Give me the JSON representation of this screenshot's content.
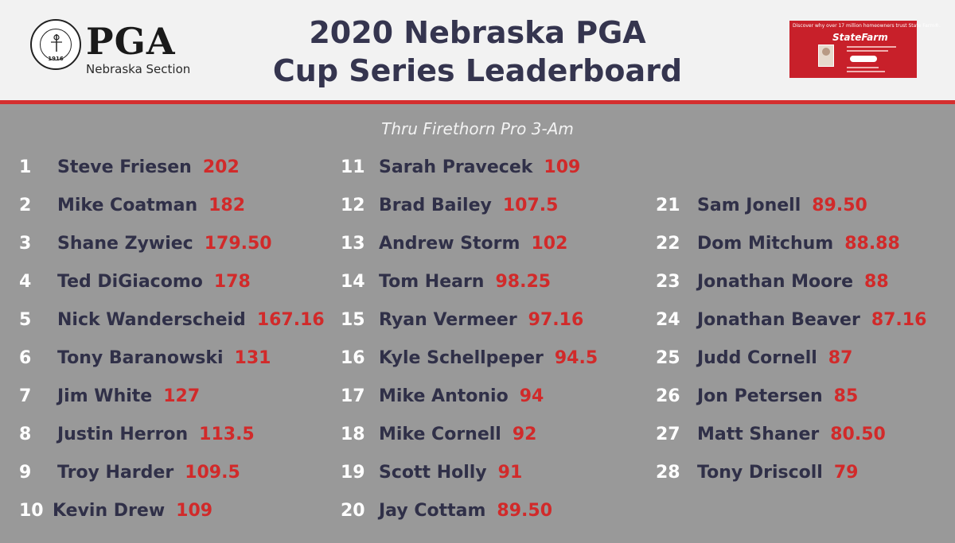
{
  "header": {
    "logo": {
      "wordmark": "PGA",
      "section": "Nebraska Section",
      "seal_year": "1916"
    },
    "title_line1": "2020 Nebraska PGA",
    "title_line2": "Cup Series Leaderboard",
    "ad": {
      "tagline": "Discover why over 17 million homeowners trust State Farm®.",
      "brand": "StateFarm",
      "button_icon": "play-triangle-icon"
    }
  },
  "colors": {
    "accent_red": "#d42e2e",
    "title_navy": "#35354f",
    "board_gray": "#999999"
  },
  "subtitle": "Thru Firethorn Pro 3-Am",
  "leaderboard": [
    {
      "rank": "1",
      "name": "Steve Friesen",
      "points": "202"
    },
    {
      "rank": "2",
      "name": "Mike Coatman",
      "points": "182"
    },
    {
      "rank": "3",
      "name": "Shane Zywiec",
      "points": "179.50"
    },
    {
      "rank": "4",
      "name": "Ted DiGiacomo",
      "points": "178"
    },
    {
      "rank": "5",
      "name": "Nick Wanderscheid",
      "points": "167.16"
    },
    {
      "rank": "6",
      "name": "Tony Baranowski",
      "points": "131"
    },
    {
      "rank": "7",
      "name": "Jim White",
      "points": "127"
    },
    {
      "rank": "8",
      "name": "Justin Herron",
      "points": "113.5"
    },
    {
      "rank": "9",
      "name": "Troy Harder",
      "points": "109.5"
    },
    {
      "rank": "10",
      "name": "Kevin Drew",
      "points": "109"
    },
    {
      "rank": "11",
      "name": "Sarah Pravecek",
      "points": "109"
    },
    {
      "rank": "12",
      "name": "Brad Bailey",
      "points": "107.5"
    },
    {
      "rank": "13",
      "name": "Andrew Storm",
      "points": "102"
    },
    {
      "rank": "14",
      "name": "Tom Hearn",
      "points": "98.25"
    },
    {
      "rank": "15",
      "name": "Ryan Vermeer",
      "points": "97.16"
    },
    {
      "rank": "16",
      "name": "Kyle Schellpeper",
      "points": "94.5"
    },
    {
      "rank": "17",
      "name": "Mike Antonio",
      "points": "94"
    },
    {
      "rank": "18",
      "name": "Mike Cornell",
      "points": "92"
    },
    {
      "rank": "19",
      "name": "Scott Holly",
      "points": "91"
    },
    {
      "rank": "20",
      "name": "Jay Cottam",
      "points": "89.50"
    },
    {
      "rank": "21",
      "name": "Sam Jonell",
      "points": "89.50"
    },
    {
      "rank": "22",
      "name": "Dom Mitchum",
      "points": "88.88"
    },
    {
      "rank": "23",
      "name": "Jonathan Moore",
      "points": "88"
    },
    {
      "rank": "24",
      "name": "Jonathan Beaver",
      "points": "87.16"
    },
    {
      "rank": "25",
      "name": "Judd Cornell",
      "points": "87"
    },
    {
      "rank": "26",
      "name": "Jon Petersen",
      "points": "85"
    },
    {
      "rank": "27",
      "name": "Matt Shaner",
      "points": "80.50"
    },
    {
      "rank": "28",
      "name": "Tony Driscoll",
      "points": "79"
    }
  ]
}
